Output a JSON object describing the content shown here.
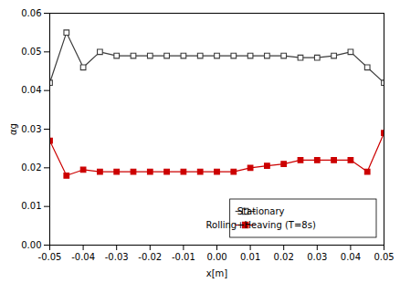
{
  "chart_data": {
    "type": "line",
    "xlabel": "x[m]",
    "ylabel": "αg",
    "x": [
      -0.05,
      -0.045,
      -0.04,
      -0.035,
      -0.03,
      -0.025,
      -0.02,
      -0.015,
      -0.01,
      -0.005,
      0.0,
      0.005,
      0.01,
      0.015,
      0.02,
      0.025,
      0.03,
      0.035,
      0.04,
      0.045,
      0.05
    ],
    "series": [
      {
        "name": "Stationary",
        "color": "#3c3c3c",
        "marker": "square-open",
        "values": [
          0.042,
          0.055,
          0.046,
          0.05,
          0.049,
          0.049,
          0.049,
          0.049,
          0.049,
          0.049,
          0.049,
          0.049,
          0.049,
          0.049,
          0.049,
          0.0485,
          0.0485,
          0.049,
          0.05,
          0.046,
          0.042
        ]
      },
      {
        "name": "Rolling+Heaving (T=8s)",
        "color": "#cc0000",
        "marker": "square",
        "values": [
          0.027,
          0.018,
          0.0195,
          0.019,
          0.019,
          0.019,
          0.019,
          0.019,
          0.019,
          0.019,
          0.019,
          0.019,
          0.02,
          0.0205,
          0.021,
          0.022,
          0.022,
          0.022,
          0.022,
          0.019,
          0.029
        ]
      }
    ],
    "xlim": [
      -0.05,
      0.05
    ],
    "xticks": [
      -0.05,
      -0.04,
      -0.03,
      -0.02,
      -0.01,
      {
        "value": 0,
        "label": "0.00"
      },
      0.01,
      0.02,
      0.03,
      0.04,
      0.05
    ],
    "ylim": [
      0.0,
      0.06
    ],
    "yticks": [
      {
        "value": 0,
        "label": "0.00"
      },
      0.01,
      0.02,
      0.03,
      0.04,
      0.05,
      0.06
    ],
    "grid": false,
    "legend": "lower right"
  }
}
